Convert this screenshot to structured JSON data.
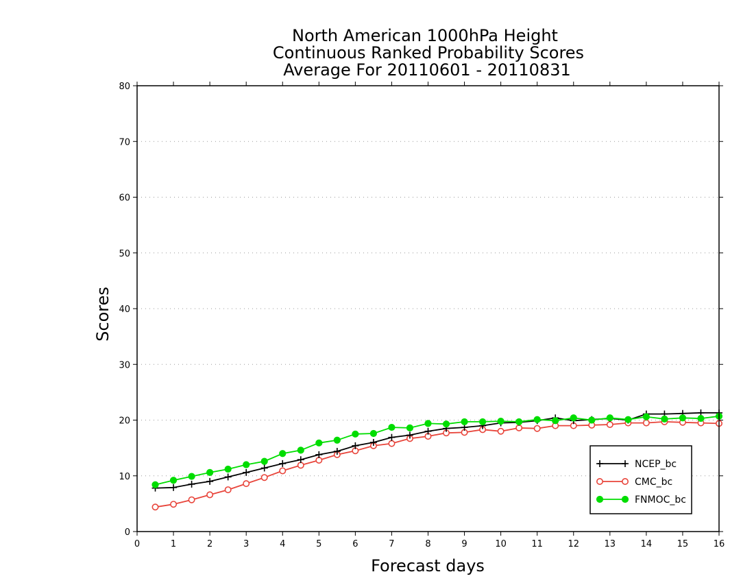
{
  "chart_data": {
    "type": "line",
    "title": [
      "North American 1000hPa Height",
      "Continuous Ranked Probability Scores",
      "Average For 20110601 - 20110831"
    ],
    "xlabel": "Forecast days",
    "ylabel": "Scores",
    "xlim": [
      0,
      16
    ],
    "ylim": [
      0,
      80
    ],
    "x_ticks": [
      "0",
      "1",
      "2",
      "3",
      "4",
      "5",
      "6",
      "7",
      "8",
      "9",
      "10",
      "11",
      "12",
      "13",
      "14",
      "15",
      "16"
    ],
    "y_ticks": [
      "0",
      "10",
      "20",
      "30",
      "40",
      "50",
      "60",
      "70",
      "80"
    ],
    "grid": "horizontal dotted",
    "legend_position": "bottom-right",
    "x": [
      0.5,
      1,
      1.5,
      2,
      2.5,
      3,
      3.5,
      4,
      4.5,
      5,
      5.5,
      6,
      6.5,
      7,
      7.5,
      8,
      8.5,
      9,
      9.5,
      10,
      10.5,
      11,
      11.5,
      12,
      12.5,
      13,
      13.5,
      14,
      14.5,
      15,
      15.5,
      16
    ],
    "series": [
      {
        "name": "NCEP_bc",
        "color": "#000000",
        "marker": "plus",
        "values": [
          7.8,
          7.9,
          8.5,
          9.0,
          9.8,
          10.6,
          11.4,
          12.2,
          12.9,
          13.8,
          14.4,
          15.4,
          16.0,
          16.9,
          17.3,
          18.0,
          18.5,
          18.7,
          19.0,
          19.5,
          19.6,
          19.9,
          20.4,
          19.9,
          20.1,
          20.3,
          20.0,
          21.1,
          21.1,
          21.2,
          21.3,
          21.3
        ]
      },
      {
        "name": "CMC_bc",
        "color": "#e8443a",
        "marker": "open-circle",
        "values": [
          4.4,
          4.9,
          5.7,
          6.6,
          7.5,
          8.6,
          9.7,
          10.9,
          11.9,
          12.8,
          13.8,
          14.5,
          15.4,
          15.8,
          16.7,
          17.1,
          17.7,
          17.8,
          18.3,
          18.0,
          18.6,
          18.5,
          19.0,
          19.0,
          19.1,
          19.2,
          19.5,
          19.5,
          19.7,
          19.6,
          19.5,
          19.4
        ]
      },
      {
        "name": "FNMOC_bc",
        "color": "#00dd00",
        "marker": "filled-circle",
        "values": [
          8.4,
          9.2,
          9.9,
          10.6,
          11.2,
          12.0,
          12.6,
          14.0,
          14.6,
          15.9,
          16.4,
          17.5,
          17.6,
          18.7,
          18.6,
          19.4,
          19.3,
          19.7,
          19.7,
          19.8,
          19.7,
          20.1,
          19.9,
          20.4,
          20.0,
          20.4,
          20.1,
          20.6,
          20.2,
          20.4,
          20.3,
          20.7
        ]
      }
    ]
  }
}
